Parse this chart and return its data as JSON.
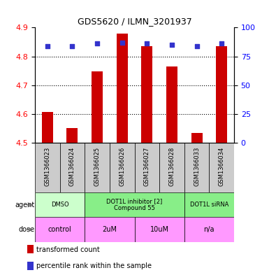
{
  "title": "GDS5620 / ILMN_3201937",
  "samples": [
    "GSM1366023",
    "GSM1366024",
    "GSM1366025",
    "GSM1366026",
    "GSM1366027",
    "GSM1366028",
    "GSM1366033",
    "GSM1366034"
  ],
  "bar_values": [
    4.608,
    4.551,
    4.748,
    4.878,
    4.836,
    4.766,
    4.535,
    4.836
  ],
  "dot_values_pct": [
    84,
    84,
    86,
    87,
    86,
    85,
    84,
    86
  ],
  "bar_base": 4.5,
  "ylim_left": [
    4.5,
    4.9
  ],
  "ylim_right": [
    0,
    100
  ],
  "yticks_left": [
    4.5,
    4.6,
    4.7,
    4.8,
    4.9
  ],
  "yticks_right": [
    0,
    25,
    50,
    75,
    100
  ],
  "bar_color": "#cc0000",
  "dot_color": "#3333cc",
  "bg_color": "#ffffff",
  "agent_groups": [
    {
      "start": 0,
      "end": 1,
      "label": "DMSO",
      "color": "#ccffcc"
    },
    {
      "start": 2,
      "end": 5,
      "label": "DOT1L inhibitor [2]\nCompound 55",
      "color": "#88ee88"
    },
    {
      "start": 6,
      "end": 7,
      "label": "DOT1L siRNA",
      "color": "#88ee88"
    }
  ],
  "dose_groups": [
    {
      "start": 0,
      "end": 1,
      "label": "control",
      "color": "#ff99ff"
    },
    {
      "start": 2,
      "end": 3,
      "label": "2uM",
      "color": "#ff99ff"
    },
    {
      "start": 4,
      "end": 5,
      "label": "10uM",
      "color": "#ff99ff"
    },
    {
      "start": 6,
      "end": 7,
      "label": "n/a",
      "color": "#ff99ff"
    }
  ],
  "legend_items": [
    {
      "color": "#cc0000",
      "label": "transformed count"
    },
    {
      "color": "#3333cc",
      "label": "percentile rank within the sample"
    }
  ],
  "sample_box_color": "#cccccc",
  "grid_yticks": [
    4.6,
    4.7,
    4.8
  ]
}
